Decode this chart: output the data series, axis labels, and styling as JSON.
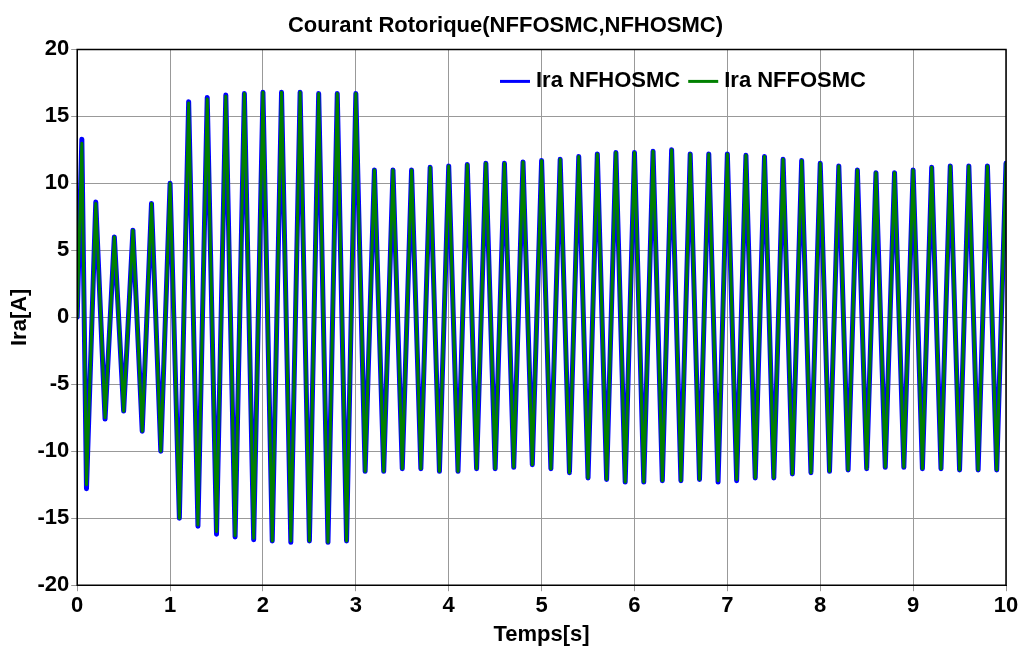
{
  "chart_data": {
    "type": "line",
    "title": "Courant Rotorique(NFFOSMC,NFHOSMC)",
    "xlabel": "Temps[s]",
    "ylabel": "Ira[A]",
    "x": [
      0,
      0.05,
      0.1,
      0.2,
      0.3,
      0.4,
      0.5,
      0.6,
      0.7,
      0.8,
      0.9,
      1,
      1.1,
      1.2,
      1.3,
      1.4,
      1.5,
      1.6,
      1.7,
      1.8,
      1.9,
      2,
      2.1,
      2.2,
      2.3,
      2.4,
      2.5,
      2.6,
      2.7,
      2.8,
      2.9,
      3,
      3.1,
      3.2,
      3.3,
      3.4,
      3.5,
      3.6,
      3.7,
      3.8,
      3.9,
      4,
      4.1,
      4.2,
      4.3,
      4.4,
      4.5,
      4.6,
      4.7,
      4.8,
      4.9,
      5,
      5.1,
      5.2,
      5.3,
      5.4,
      5.5,
      5.6,
      5.7,
      5.8,
      5.9,
      6,
      6.1,
      6.2,
      6.3,
      6.4,
      6.5,
      6.6,
      6.7,
      6.8,
      6.9,
      7,
      7.1,
      7.2,
      7.3,
      7.4,
      7.5,
      7.6,
      7.7,
      7.8,
      7.9,
      8,
      8.1,
      8.2,
      8.3,
      8.4,
      8.5,
      8.6,
      8.7,
      8.8,
      8.9,
      9,
      9.1,
      9.2,
      9.3,
      9.4,
      9.5,
      9.6,
      9.7,
      9.8,
      9.9,
      10
    ],
    "series": [
      {
        "name": "Ira NFHOSMC",
        "color": "#0000ff",
        "values": [
          0,
          13.3,
          -12.8,
          8.6,
          -7.6,
          6,
          -7,
          6.5,
          -8.5,
          8.5,
          -10,
          10,
          -15,
          16.1,
          -15.6,
          16.4,
          -16.2,
          16.6,
          -16.4,
          16.7,
          -16.6,
          16.8,
          -16.7,
          16.8,
          -16.8,
          16.8,
          -16.7,
          16.7,
          -16.8,
          16.7,
          -16.7,
          16.7,
          -11.5,
          11,
          -11.5,
          11,
          -11.3,
          11,
          -11.3,
          11.2,
          -11.5,
          11.3,
          -11.5,
          11.4,
          -11.3,
          11.5,
          -11.3,
          11.5,
          -11.2,
          11.6,
          -11,
          11.7,
          -11.3,
          11.8,
          -11.6,
          12,
          -12,
          12.2,
          -12.1,
          12.3,
          -12.3,
          12.3,
          -12.3,
          12.4,
          -12.2,
          12.5,
          -12.2,
          12.2,
          -12.1,
          12.2,
          -12.3,
          12.2,
          -12.2,
          12.1,
          -12,
          12,
          -12,
          11.8,
          -11.7,
          11.7,
          -11.6,
          11.5,
          -11.5,
          11.3,
          -11.4,
          11,
          -11.3,
          10.8,
          -11.2,
          10.8,
          -11.2,
          11,
          -11.3,
          11.2,
          -11.3,
          11.3,
          -11.4,
          11.3,
          -11.4,
          11.3,
          -11.4,
          11.5
        ]
      },
      {
        "name": "Ira NFFOSMC",
        "color": "#008000",
        "values": [
          0,
          13,
          -12.5,
          8.5,
          -7.5,
          6,
          -7,
          6.5,
          -8.5,
          8.5,
          -10,
          10,
          -15,
          16,
          -15.5,
          16.3,
          -16,
          16.5,
          -16.3,
          16.7,
          -16.5,
          16.8,
          -16.7,
          16.8,
          -16.7,
          16.8,
          -16.7,
          16.7,
          -16.8,
          16.7,
          -16.7,
          16.7,
          -11.5,
          11,
          -11.5,
          11,
          -11.3,
          11,
          -11.3,
          11.2,
          -11.5,
          11.3,
          -11.5,
          11.4,
          -11.3,
          11.5,
          -11.3,
          11.5,
          -11.2,
          11.6,
          -11,
          11.7,
          -11.3,
          11.8,
          -11.6,
          12,
          -12,
          12.2,
          -12.1,
          12.3,
          -12.3,
          12.3,
          -12.3,
          12.4,
          -12.2,
          12.5,
          -12.2,
          12.2,
          -12.1,
          12.2,
          -12.2,
          12.2,
          -12.1,
          12.1,
          -12,
          12,
          -12,
          11.8,
          -11.7,
          11.7,
          -11.6,
          11.5,
          -11.5,
          11.3,
          -11.4,
          11,
          -11.3,
          10.8,
          -11.2,
          10.8,
          -11.2,
          11,
          -11.3,
          11.2,
          -11.3,
          11.3,
          -11.4,
          11.3,
          -11.4,
          11.3,
          -11.4,
          11.5
        ]
      }
    ],
    "xlim": [
      0,
      10
    ],
    "xticks": [
      0,
      1,
      2,
      3,
      4,
      5,
      6,
      7,
      8,
      9,
      10
    ],
    "ylim": [
      -20,
      20
    ],
    "yticks": [
      -20,
      -15,
      -10,
      -5,
      0,
      5,
      10,
      15,
      20
    ],
    "grid": true,
    "legend": "top right",
    "marker": "none",
    "line_style": "solid"
  }
}
